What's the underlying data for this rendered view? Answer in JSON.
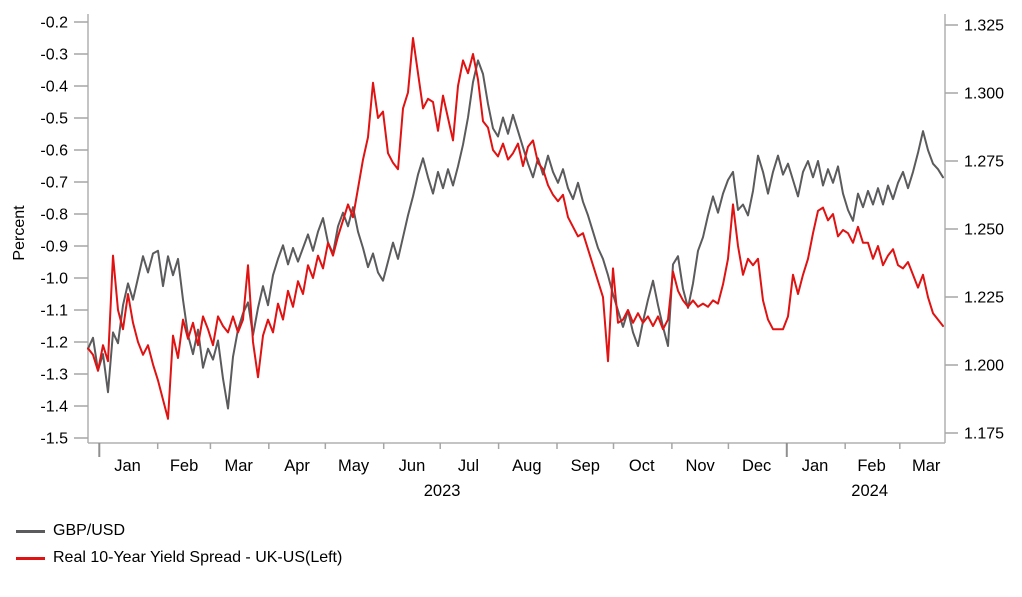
{
  "chart_data": {
    "type": "line",
    "title": "",
    "grid": false,
    "legend_position": "bottom-left",
    "left_axis": {
      "label": "Percent",
      "tick_labels": [
        "-0.2",
        "-0.3",
        "-0.4",
        "-0.5",
        "-0.6",
        "-0.7",
        "-0.8",
        "-0.9",
        "-1.0",
        "-1.1",
        "-1.2",
        "-1.3",
        "-1.4",
        "-1.5"
      ],
      "range": [
        -1.5,
        -0.2
      ]
    },
    "right_axis": {
      "label": "",
      "tick_labels": [
        "1.325",
        "1.300",
        "1.275",
        "1.250",
        "1.225",
        "1.200",
        "1.175"
      ],
      "range": [
        1.175,
        1.325
      ]
    },
    "x_axis": {
      "span_days": 455,
      "month_labels": [
        "Jan",
        "Feb",
        "Mar",
        "Apr",
        "May",
        "Jun",
        "Jul",
        "Aug",
        "Sep",
        "Oct",
        "Nov",
        "Dec",
        "Jan",
        "Feb",
        "Mar"
      ],
      "month_label_days": [
        21,
        51,
        80,
        111,
        141,
        172,
        202,
        233,
        264,
        294,
        325,
        355,
        386,
        416,
        445
      ],
      "month_tick_days": [
        6,
        37,
        65,
        96,
        126,
        157,
        187,
        218,
        249,
        279,
        310,
        340,
        371,
        402,
        431
      ],
      "year_tick_days": [
        6,
        371
      ],
      "year_labels": [
        "2023",
        "2024"
      ],
      "year_label_days": [
        188,
        415
      ]
    },
    "series": [
      {
        "name": "GBP/USD",
        "axis": "right",
        "color": "#5b5b5d",
        "values": [
          1.206,
          1.21,
          1.198,
          1.204,
          1.19,
          1.212,
          1.208,
          1.222,
          1.23,
          1.224,
          1.232,
          1.24,
          1.234,
          1.241,
          1.242,
          1.229,
          1.24,
          1.233,
          1.239,
          1.224,
          1.211,
          1.204,
          1.213,
          1.199,
          1.206,
          1.202,
          1.209,
          1.195,
          1.184,
          1.203,
          1.213,
          1.219,
          1.223,
          1.211,
          1.221,
          1.229,
          1.222,
          1.233,
          1.239,
          1.244,
          1.237,
          1.243,
          1.238,
          1.243,
          1.248,
          1.242,
          1.249,
          1.254,
          1.245,
          1.241,
          1.251,
          1.256,
          1.251,
          1.258,
          1.249,
          1.243,
          1.236,
          1.241,
          1.234,
          1.231,
          1.238,
          1.245,
          1.239,
          1.247,
          1.255,
          1.262,
          1.27,
          1.276,
          1.269,
          1.263,
          1.271,
          1.265,
          1.272,
          1.266,
          1.273,
          1.281,
          1.291,
          1.304,
          1.312,
          1.307,
          1.296,
          1.287,
          1.284,
          1.291,
          1.285,
          1.292,
          1.286,
          1.28,
          1.274,
          1.269,
          1.276,
          1.27,
          1.277,
          1.271,
          1.267,
          1.272,
          1.265,
          1.261,
          1.267,
          1.26,
          1.255,
          1.249,
          1.243,
          1.239,
          1.233,
          1.226,
          1.22,
          1.214,
          1.22,
          1.212,
          1.207,
          1.216,
          1.224,
          1.231,
          1.222,
          1.214,
          1.207,
          1.237,
          1.24,
          1.228,
          1.221,
          1.23,
          1.242,
          1.247,
          1.255,
          1.262,
          1.256,
          1.263,
          1.268,
          1.271,
          1.257,
          1.259,
          1.255,
          1.264,
          1.277,
          1.271,
          1.263,
          1.271,
          1.277,
          1.27,
          1.274,
          1.268,
          1.262,
          1.271,
          1.275,
          1.269,
          1.275,
          1.266,
          1.272,
          1.267,
          1.273,
          1.263,
          1.257,
          1.253,
          1.263,
          1.258,
          1.264,
          1.259,
          1.265,
          1.259,
          1.266,
          1.261,
          1.267,
          1.271,
          1.265,
          1.271,
          1.278,
          1.286,
          1.279,
          1.274,
          1.272,
          1.269
        ]
      },
      {
        "name": "Real 10-Year Yield Spread - UK-US(Left)",
        "axis": "left",
        "color": "#e01212",
        "values": [
          -1.22,
          -1.24,
          -1.29,
          -1.21,
          -1.26,
          -0.93,
          -1.1,
          -1.16,
          -1.05,
          -1.14,
          -1.2,
          -1.24,
          -1.21,
          -1.27,
          -1.32,
          -1.38,
          -1.44,
          -1.18,
          -1.25,
          -1.13,
          -1.19,
          -1.14,
          -1.21,
          -1.12,
          -1.16,
          -1.21,
          -1.12,
          -1.15,
          -1.17,
          -1.12,
          -1.17,
          -1.13,
          -0.96,
          -1.2,
          -1.31,
          -1.18,
          -1.13,
          -1.17,
          -1.08,
          -1.13,
          -1.04,
          -1.09,
          -1.01,
          -1.05,
          -0.96,
          -1.0,
          -0.93,
          -0.97,
          -0.89,
          -0.93,
          -0.87,
          -0.82,
          -0.77,
          -0.81,
          -0.72,
          -0.63,
          -0.56,
          -0.39,
          -0.5,
          -0.48,
          -0.61,
          -0.64,
          -0.66,
          -0.47,
          -0.42,
          -0.25,
          -0.36,
          -0.47,
          -0.44,
          -0.45,
          -0.54,
          -0.43,
          -0.5,
          -0.57,
          -0.4,
          -0.32,
          -0.36,
          -0.3,
          -0.38,
          -0.51,
          -0.53,
          -0.6,
          -0.62,
          -0.58,
          -0.63,
          -0.61,
          -0.58,
          -0.65,
          -0.59,
          -0.57,
          -0.64,
          -0.66,
          -0.71,
          -0.74,
          -0.76,
          -0.74,
          -0.81,
          -0.84,
          -0.87,
          -0.86,
          -0.91,
          -0.96,
          -1.01,
          -1.06,
          -1.26,
          -0.97,
          -1.14,
          -1.13,
          -1.1,
          -1.14,
          -1.11,
          -1.14,
          -1.12,
          -1.15,
          -1.12,
          -1.16,
          -1.13,
          -0.98,
          -1.04,
          -1.07,
          -1.09,
          -1.07,
          -1.09,
          -1.08,
          -1.09,
          -1.07,
          -1.08,
          -1.02,
          -0.94,
          -0.77,
          -0.9,
          -0.99,
          -0.94,
          -0.96,
          -0.94,
          -1.07,
          -1.13,
          -1.16,
          -1.16,
          -1.16,
          -1.12,
          -0.99,
          -1.05,
          -0.99,
          -0.94,
          -0.86,
          -0.79,
          -0.78,
          -0.82,
          -0.8,
          -0.87,
          -0.85,
          -0.86,
          -0.89,
          -0.84,
          -0.89,
          -0.89,
          -0.94,
          -0.9,
          -0.96,
          -0.93,
          -0.91,
          -0.96,
          -0.97,
          -0.95,
          -0.99,
          -1.03,
          -0.99,
          -1.06,
          -1.11,
          -1.13,
          -1.15
        ]
      }
    ],
    "style": {
      "axis_line_color": "#b0b0b0",
      "tick_color": "#a6a6a6",
      "text_color": "#000000"
    }
  }
}
